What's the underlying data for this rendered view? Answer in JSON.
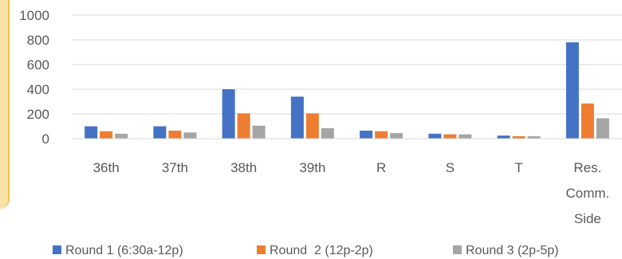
{
  "chart_data": {
    "type": "bar",
    "categories": [
      "36th",
      "37th",
      "38th",
      "39th",
      "R",
      "S",
      "T",
      "Res. Comm. Side"
    ],
    "category_lines": [
      [
        "36th"
      ],
      [
        "37th"
      ],
      [
        "38th"
      ],
      [
        "39th"
      ],
      [
        "R"
      ],
      [
        "S"
      ],
      [
        "T"
      ],
      [
        "Res.",
        "Comm.",
        "Side"
      ]
    ],
    "series": [
      {
        "name": "Round 1 (6:30a-12p)",
        "values": [
          100,
          100,
          400,
          340,
          65,
          40,
          25,
          780
        ],
        "color": "#4472c4"
      },
      {
        "name": "Round  2 (12p-2p)",
        "values": [
          60,
          65,
          205,
          205,
          60,
          35,
          20,
          285
        ],
        "color": "#ed7d31"
      },
      {
        "name": "Round 3 (2p-5p)",
        "values": [
          40,
          50,
          105,
          85,
          45,
          35,
          20,
          165
        ],
        "color": "#a5a5a5"
      }
    ],
    "ylim": [
      0,
      1000
    ],
    "yticks": [
      "0",
      "200",
      "400",
      "600",
      "800",
      "1000"
    ],
    "grid": true,
    "legend": "bottom",
    "title": "",
    "xlabel": "",
    "ylabel": ""
  }
}
